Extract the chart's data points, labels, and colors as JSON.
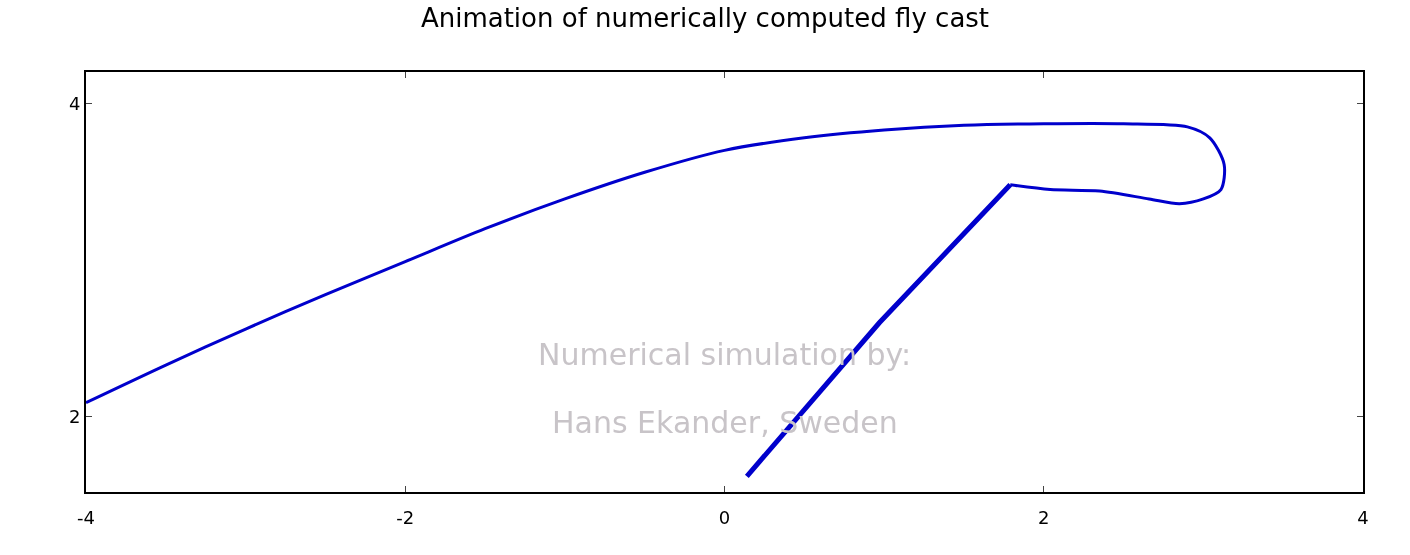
{
  "chart_data": {
    "type": "line",
    "title": "Animation of numerically computed fly cast",
    "series": [
      {
        "color": "#0000cc",
        "x": [
          -4,
          -3.5,
          -3,
          -2.5,
          -2,
          -1.5,
          -1,
          -0.5,
          0,
          0.5,
          1,
          1.5,
          2,
          2.5,
          2.9,
          3.04,
          3.13,
          3.11,
          3.0,
          2.85,
          2.66,
          2.35,
          2.04,
          1.79
        ],
        "values": [
          2.09,
          2.33,
          2.56,
          2.78,
          2.99,
          3.2,
          3.39,
          3.56,
          3.7,
          3.78,
          3.83,
          3.86,
          3.87,
          3.87,
          3.85,
          3.78,
          3.61,
          3.45,
          3.39,
          3.36,
          3.39,
          3.44,
          3.45,
          3.48
        ]
      },
      {
        "color": "#0000cc",
        "x": [
          0.14,
          0.97,
          1.79
        ],
        "values": [
          1.62,
          2.6,
          3.48
        ]
      }
    ],
    "xlim": [
      -4,
      4
    ],
    "xticks": [
      -4,
      -2,
      0,
      2,
      4
    ],
    "ylim": [
      1.52,
      4.2
    ],
    "yticks": [
      2,
      4
    ],
    "grid": false,
    "annotations": [
      "Numerical simulation by:",
      "Hans Ekander, Sweden"
    ]
  }
}
